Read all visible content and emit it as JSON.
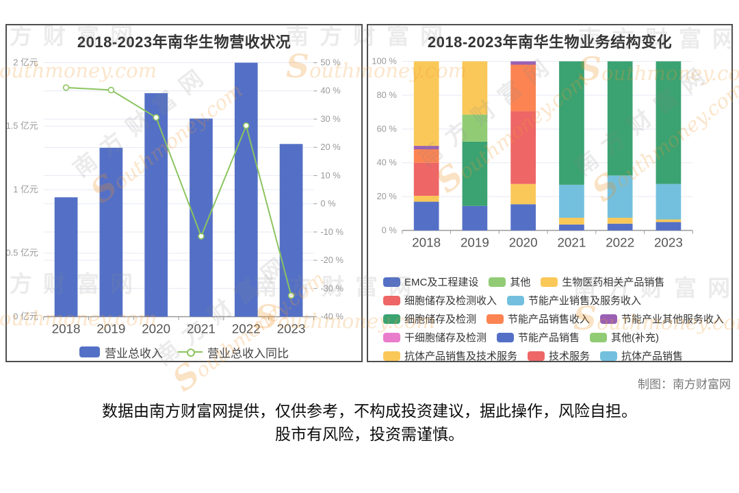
{
  "page": {
    "credit": "制图：南方财富网",
    "disclaimer_line1": "数据由南方财富网提供，仅供参考，不构成投资建议，据此操作，风险自担。",
    "disclaimer_line2": "股市有风险，投资需谨慎。"
  },
  "watermark": {
    "cjk": "南方财富网",
    "s": "S",
    "roman_rest": "outhmoney.com",
    "gray": "#8a8a8a",
    "orange": "#f09a34"
  },
  "chart_data": [
    {
      "id": "revenue",
      "type": "bar",
      "title": "2018-2023年南华生物营收状况",
      "categories": [
        "2018",
        "2019",
        "2020",
        "2021",
        "2022",
        "2023"
      ],
      "series": [
        {
          "name": "营业总收入",
          "type": "bar",
          "unit": "亿元",
          "color": "#5470c6",
          "values": [
            0.94,
            1.33,
            1.76,
            1.56,
            2.0,
            1.36
          ]
        },
        {
          "name": "营业总收入同比",
          "type": "line",
          "unit": "%",
          "color": "#8bc45f",
          "values": [
            41.2,
            40.3,
            30.6,
            -11.5,
            27.7,
            -32.5
          ]
        }
      ],
      "y_left": {
        "min": 0,
        "max": 2,
        "step": 0.5,
        "suffix": " 亿元"
      },
      "y_right": {
        "min": -40,
        "max": 50,
        "step": 10,
        "suffix": " %"
      },
      "legend": [
        "营业总收入",
        "营业总收入同比"
      ],
      "legend_position": "bottom",
      "grid": true
    },
    {
      "id": "structure",
      "type": "bar",
      "stack": "percent",
      "title": "2018-2023年南华生物业务结构变化",
      "categories": [
        "2018",
        "2019",
        "2020",
        "2021",
        "2022",
        "2023"
      ],
      "y": {
        "min": 0,
        "max": 100,
        "step": 20,
        "suffix": " %"
      },
      "series": [
        {
          "name": "EMC及工程建设",
          "color": "#5470c6",
          "values": [
            17,
            14.5,
            15.5,
            3.5,
            4,
            5
          ]
        },
        {
          "name": "其他",
          "color": "#91cc75",
          "values": [
            0,
            0,
            0,
            0,
            0,
            0
          ]
        },
        {
          "name": "生物医药相关产品销售",
          "color": "#fac858",
          "values": [
            3.5,
            0,
            12,
            4,
            3.5,
            1.5
          ]
        },
        {
          "name": "细胞储存及检测收入",
          "color": "#ee6666",
          "values": [
            19.5,
            0,
            43,
            0,
            0,
            0
          ]
        },
        {
          "name": "节能产业销售及服务收入",
          "color": "#73c0de",
          "values": [
            0,
            0,
            0,
            19.5,
            25,
            21
          ]
        },
        {
          "name": "细胞储存及检测",
          "color": "#3ba272",
          "values": [
            0,
            38,
            0,
            73,
            67.5,
            72.5
          ]
        },
        {
          "name": "节能产品销售收入",
          "color": "#fc8452",
          "values": [
            8,
            0,
            27.5,
            0,
            0,
            0
          ]
        },
        {
          "name": "节能产业其他服务收入",
          "color": "#9a60b4",
          "values": [
            2,
            0,
            2,
            0,
            0,
            0
          ]
        },
        {
          "name": "干细胞储存及检测",
          "color": "#ea7ccc",
          "values": [
            0,
            0,
            0,
            0,
            0,
            0
          ]
        },
        {
          "name": "节能产品销售",
          "color": "#5470c6",
          "values": [
            0,
            0,
            0,
            0,
            0,
            0
          ]
        },
        {
          "name": "其他(补充)",
          "color": "#91cc75",
          "values": [
            0,
            16,
            0,
            0,
            0,
            0
          ]
        },
        {
          "name": "抗体产品销售及技术服务",
          "color": "#fac858",
          "values": [
            50,
            31.5,
            0,
            0,
            0,
            0
          ]
        },
        {
          "name": "技术服务",
          "color": "#ee6666",
          "values": [
            0,
            0,
            0,
            0,
            0,
            0
          ]
        },
        {
          "name": "抗体产品销售",
          "color": "#73c0de",
          "values": [
            0,
            0,
            0,
            0,
            0,
            0
          ]
        }
      ],
      "legend_rows": [
        [
          "EMC及工程建设",
          "其他",
          "生物医药相关产品销售"
        ],
        [
          "细胞储存及检测收入",
          "节能产业销售及服务收入"
        ],
        [
          "细胞储存及检测",
          "节能产品销售收入",
          "节能产业其他服务收入"
        ],
        [
          "干细胞储存及检测",
          "节能产品销售",
          "其他(补充)"
        ],
        [
          "抗体产品销售及技术服务",
          "技术服务",
          "抗体产品销售"
        ]
      ],
      "legend_position": "bottom",
      "grid": true
    }
  ]
}
